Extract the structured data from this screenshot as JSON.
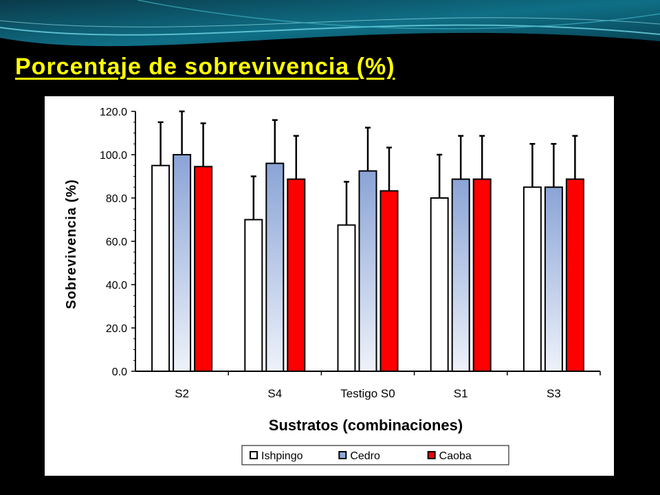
{
  "slide": {
    "title": "Porcentaje de sobrevivencia (%)",
    "title_color": "#ffff00",
    "background": "#000000",
    "banner_colors": [
      "#004a5e",
      "#1d8fa6",
      "#5cc7d8"
    ]
  },
  "chart_data": {
    "type": "bar",
    "title": "",
    "xlabel": "Sustratos (combinaciones)",
    "ylabel": "Sobrevivencia (%)",
    "ylim": [
      0,
      120
    ],
    "yticks": [
      "0.0",
      "20.0",
      "40.0",
      "60.0",
      "80.0",
      "100.0",
      "120.0"
    ],
    "categories": [
      "S2",
      "S4",
      "Testigo S0",
      "S1",
      "S3"
    ],
    "series": [
      {
        "name": "Ishpingo",
        "values": [
          95,
          70,
          67.5,
          80,
          85
        ],
        "errors": [
          20,
          20,
          20,
          20,
          20
        ],
        "color": "#ffffff"
      },
      {
        "name": "Cedro",
        "values": [
          100,
          96,
          92.5,
          88.7,
          85
        ],
        "errors": [
          20,
          20,
          20,
          20,
          20
        ],
        "color": "#93acd9"
      },
      {
        "name": "Caoba",
        "values": [
          94.5,
          88.7,
          83.3,
          88.7,
          88.7
        ],
        "errors": [
          20,
          20,
          20,
          20,
          20
        ],
        "color": "#ff0000"
      }
    ],
    "legend_position": "bottom",
    "grid": false,
    "error_bars": true
  }
}
